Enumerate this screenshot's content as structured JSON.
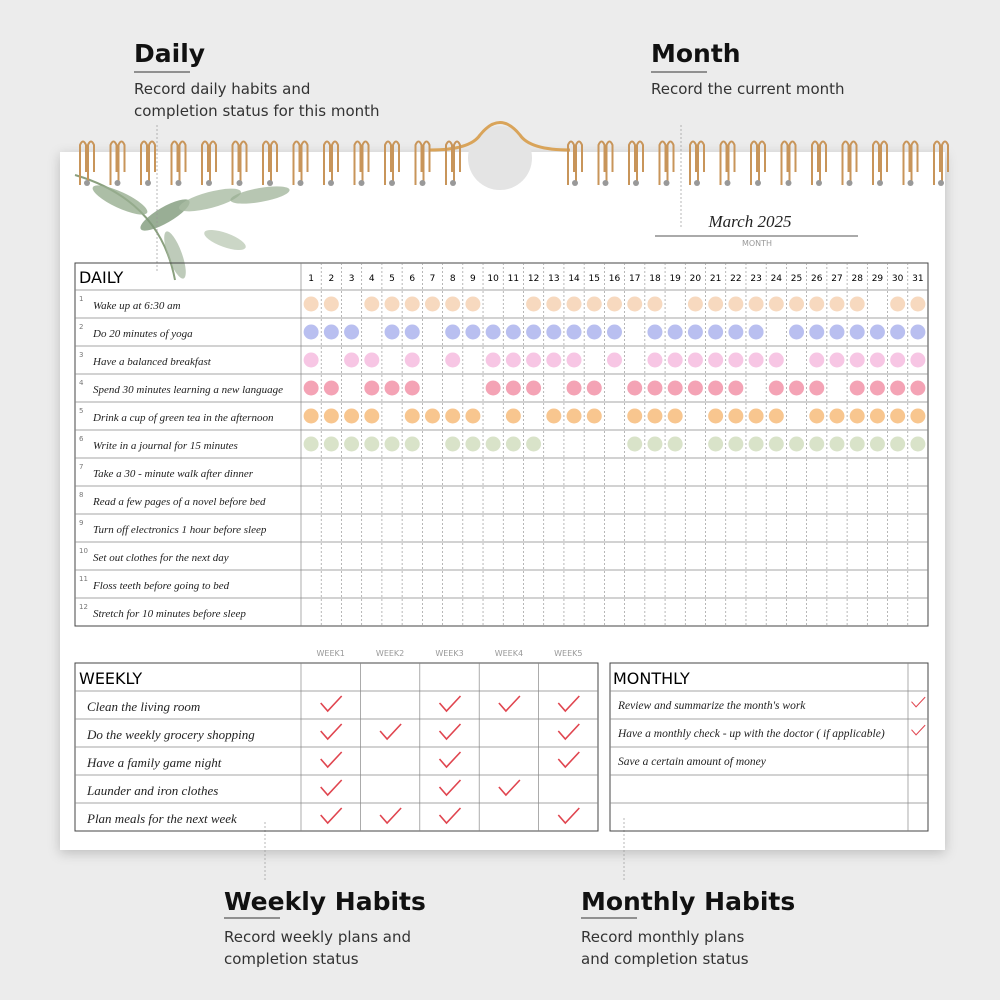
{
  "annotations": {
    "daily": {
      "title": "Daily",
      "text": [
        "Record daily habits and",
        "completion status for this month"
      ]
    },
    "month": {
      "title": "Month",
      "text": [
        "Record the current month"
      ]
    },
    "weekly": {
      "title": "Weekly Habits",
      "text": [
        "Record weekly plans and",
        "completion status"
      ]
    },
    "monthly": {
      "title": "Monthly Habits",
      "text": [
        "Record monthly plans",
        "and completion status"
      ]
    }
  },
  "month": {
    "value": "March 2025",
    "label": "MONTH"
  },
  "daily": {
    "title": "DAILY",
    "days": [
      1,
      2,
      3,
      4,
      5,
      6,
      7,
      8,
      9,
      10,
      11,
      12,
      13,
      14,
      15,
      16,
      17,
      18,
      19,
      20,
      21,
      22,
      23,
      24,
      25,
      26,
      27,
      28,
      29,
      30,
      31
    ],
    "habits": [
      {
        "number": 1,
        "name": "Wake up at 6:30 am",
        "color": "#f7d9bf",
        "status": [
          1,
          1,
          0,
          1,
          1,
          1,
          1,
          1,
          1,
          0,
          0,
          1,
          1,
          1,
          1,
          1,
          1,
          1,
          0,
          1,
          1,
          1,
          1,
          1,
          1,
          1,
          1,
          1,
          0,
          1,
          1
        ]
      },
      {
        "number": 2,
        "name": "Do 20 minutes of yoga",
        "color": "#b9bff0",
        "status": [
          1,
          1,
          1,
          0,
          1,
          1,
          0,
          1,
          1,
          1,
          1,
          1,
          1,
          1,
          1,
          1,
          0,
          1,
          1,
          1,
          1,
          1,
          1,
          0,
          1,
          1,
          1,
          1,
          1,
          1,
          1
        ]
      },
      {
        "number": 3,
        "name": "Have a balanced breakfast",
        "color": "#f7c6e4",
        "status": [
          1,
          0,
          1,
          1,
          0,
          1,
          0,
          1,
          0,
          1,
          1,
          1,
          1,
          1,
          0,
          1,
          0,
          1,
          1,
          1,
          1,
          1,
          1,
          1,
          0,
          1,
          1,
          1,
          1,
          1,
          1
        ]
      },
      {
        "number": 4,
        "name": "Spend 30 minutes learning a new language",
        "color": "#f4a3b5",
        "status": [
          1,
          1,
          0,
          1,
          1,
          1,
          0,
          0,
          0,
          1,
          1,
          1,
          0,
          1,
          1,
          0,
          1,
          1,
          1,
          1,
          1,
          1,
          0,
          1,
          1,
          1,
          0,
          1,
          1,
          1,
          1
        ]
      },
      {
        "number": 5,
        "name": "Drink a cup of green tea in the afternoon",
        "color": "#f8c68f",
        "status": [
          1,
          1,
          1,
          1,
          0,
          1,
          1,
          1,
          1,
          0,
          1,
          0,
          1,
          1,
          1,
          0,
          1,
          1,
          1,
          0,
          1,
          1,
          1,
          1,
          0,
          1,
          1,
          1,
          1,
          1,
          1
        ]
      },
      {
        "number": 6,
        "name": "Write in a journal for 15 minutes",
        "color": "#d9e3c9",
        "status": [
          1,
          1,
          1,
          1,
          1,
          1,
          0,
          1,
          1,
          1,
          1,
          1,
          0,
          0,
          0,
          0,
          1,
          1,
          1,
          0,
          1,
          1,
          1,
          1,
          1,
          1,
          1,
          1,
          1,
          1,
          1
        ]
      },
      {
        "number": 7,
        "name": "Take a 30 - minute walk after dinner",
        "color": "#ccc",
        "status": [
          0,
          0,
          0,
          0,
          0,
          0,
          0,
          0,
          0,
          0,
          0,
          0,
          0,
          0,
          0,
          0,
          0,
          0,
          0,
          0,
          0,
          0,
          0,
          0,
          0,
          0,
          0,
          0,
          0,
          0,
          0
        ]
      },
      {
        "number": 8,
        "name": "Read a few pages of a novel before bed",
        "color": "#ccc",
        "status": [
          0,
          0,
          0,
          0,
          0,
          0,
          0,
          0,
          0,
          0,
          0,
          0,
          0,
          0,
          0,
          0,
          0,
          0,
          0,
          0,
          0,
          0,
          0,
          0,
          0,
          0,
          0,
          0,
          0,
          0,
          0
        ]
      },
      {
        "number": 9,
        "name": "Turn off electronics 1 hour before sleep",
        "color": "#ccc",
        "status": [
          0,
          0,
          0,
          0,
          0,
          0,
          0,
          0,
          0,
          0,
          0,
          0,
          0,
          0,
          0,
          0,
          0,
          0,
          0,
          0,
          0,
          0,
          0,
          0,
          0,
          0,
          0,
          0,
          0,
          0,
          0
        ]
      },
      {
        "number": 10,
        "name": "Set out clothes for the next day",
        "color": "#ccc",
        "status": [
          0,
          0,
          0,
          0,
          0,
          0,
          0,
          0,
          0,
          0,
          0,
          0,
          0,
          0,
          0,
          0,
          0,
          0,
          0,
          0,
          0,
          0,
          0,
          0,
          0,
          0,
          0,
          0,
          0,
          0,
          0
        ]
      },
      {
        "number": 11,
        "name": "Floss teeth before going to bed",
        "color": "#ccc",
        "status": [
          0,
          0,
          0,
          0,
          0,
          0,
          0,
          0,
          0,
          0,
          0,
          0,
          0,
          0,
          0,
          0,
          0,
          0,
          0,
          0,
          0,
          0,
          0,
          0,
          0,
          0,
          0,
          0,
          0,
          0,
          0
        ]
      },
      {
        "number": 12,
        "name": "Stretch for 10 minutes before sleep",
        "color": "#ccc",
        "status": [
          0,
          0,
          0,
          0,
          0,
          0,
          0,
          0,
          0,
          0,
          0,
          0,
          0,
          0,
          0,
          0,
          0,
          0,
          0,
          0,
          0,
          0,
          0,
          0,
          0,
          0,
          0,
          0,
          0,
          0,
          0
        ]
      }
    ]
  },
  "weekly": {
    "title": "WEEKLY",
    "weeks": [
      "WEEK1",
      "WEEK2",
      "WEEK3",
      "WEEK4",
      "WEEK5"
    ],
    "check_color": "#e0454f",
    "habits": [
      {
        "name": "Clean the living room",
        "status": [
          1,
          0,
          1,
          1,
          1
        ]
      },
      {
        "name": "Do the weekly grocery shopping",
        "status": [
          1,
          1,
          1,
          0,
          1
        ]
      },
      {
        "name": "Have a family game night",
        "status": [
          1,
          0,
          1,
          0,
          1
        ]
      },
      {
        "name": "Launder and iron clothes",
        "status": [
          1,
          0,
          1,
          1,
          0
        ]
      },
      {
        "name": "Plan meals for the next week",
        "status": [
          1,
          1,
          1,
          0,
          1
        ]
      }
    ]
  },
  "monthly": {
    "title": "MONTHLY",
    "habits": [
      {
        "name": "Review and summarize the month's work",
        "status": 1
      },
      {
        "name": "Have a monthly check - up with the doctor ( if applicable)",
        "status": 1
      },
      {
        "name": "Save a certain amount of money",
        "status": 0
      }
    ]
  }
}
